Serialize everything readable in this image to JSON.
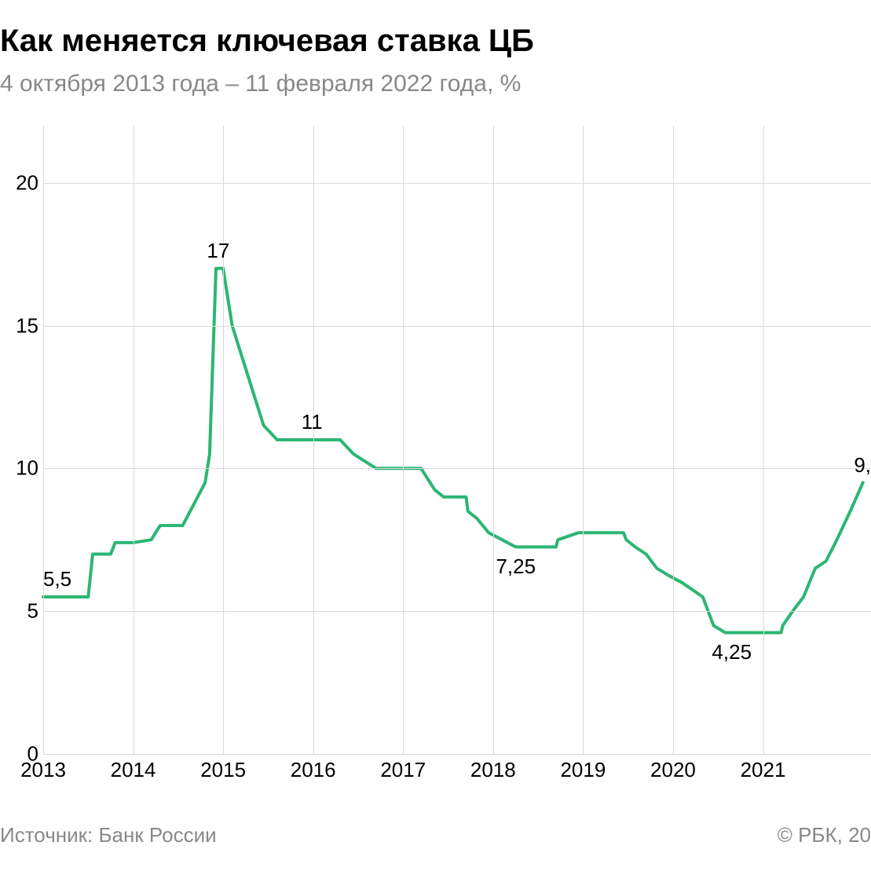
{
  "title": "Как меняется ключевая ставка ЦБ",
  "subtitle": "4 октября 2013 года – 11 февраля 2022 года, %",
  "source_label": "Источник: Банк России",
  "copyright_label": "© РБК, 20",
  "chart": {
    "type": "line",
    "line_color": "#2bb673",
    "line_width": 4,
    "background_color": "#ffffff",
    "grid_color": "#d9d9d9",
    "axis_text_color": "#000000",
    "label_text_color": "#000000",
    "tick_fontsize": 26,
    "label_fontsize": 26,
    "ylim": [
      0,
      22
    ],
    "yticks": [
      0,
      5,
      10,
      15,
      20
    ],
    "xlim": [
      2013.0,
      2022.2
    ],
    "xticks": [
      2013,
      2014,
      2015,
      2016,
      2017,
      2018,
      2019,
      2020,
      2021
    ],
    "data_labels": [
      {
        "x": 2013.0,
        "y": 5.5,
        "text": "5,5",
        "anchor": "above-left"
      },
      {
        "x": 2014.95,
        "y": 17,
        "text": "17",
        "anchor": "above"
      },
      {
        "x": 2016.0,
        "y": 11,
        "text": "11",
        "anchor": "above"
      },
      {
        "x": 2018.25,
        "y": 7.25,
        "text": "7,25",
        "anchor": "below"
      },
      {
        "x": 2020.65,
        "y": 4.25,
        "text": "4,25",
        "anchor": "below"
      },
      {
        "x": 2022.15,
        "y": 9.5,
        "text": "9,",
        "anchor": "right-edge"
      }
    ],
    "series": [
      {
        "x": 2013.0,
        "y": 5.5
      },
      {
        "x": 2013.5,
        "y": 5.5
      },
      {
        "x": 2013.55,
        "y": 7.0
      },
      {
        "x": 2013.75,
        "y": 7.0
      },
      {
        "x": 2013.8,
        "y": 7.4
      },
      {
        "x": 2013.95,
        "y": 7.4
      },
      {
        "x": 2014.0,
        "y": 7.4
      },
      {
        "x": 2014.2,
        "y": 7.5
      },
      {
        "x": 2014.3,
        "y": 8.0
      },
      {
        "x": 2014.55,
        "y": 8.0
      },
      {
        "x": 2014.6,
        "y": 8.3
      },
      {
        "x": 2014.8,
        "y": 9.5
      },
      {
        "x": 2014.85,
        "y": 10.5
      },
      {
        "x": 2014.92,
        "y": 17.0
      },
      {
        "x": 2015.0,
        "y": 17.0
      },
      {
        "x": 2015.1,
        "y": 15.0
      },
      {
        "x": 2015.2,
        "y": 14.0
      },
      {
        "x": 2015.35,
        "y": 12.5
      },
      {
        "x": 2015.45,
        "y": 11.5
      },
      {
        "x": 2015.6,
        "y": 11.0
      },
      {
        "x": 2016.3,
        "y": 11.0
      },
      {
        "x": 2016.45,
        "y": 10.5
      },
      {
        "x": 2016.7,
        "y": 10.0
      },
      {
        "x": 2017.2,
        "y": 10.0
      },
      {
        "x": 2017.25,
        "y": 9.75
      },
      {
        "x": 2017.35,
        "y": 9.25
      },
      {
        "x": 2017.45,
        "y": 9.0
      },
      {
        "x": 2017.7,
        "y": 9.0
      },
      {
        "x": 2017.72,
        "y": 8.5
      },
      {
        "x": 2017.82,
        "y": 8.25
      },
      {
        "x": 2017.95,
        "y": 7.75
      },
      {
        "x": 2018.1,
        "y": 7.5
      },
      {
        "x": 2018.25,
        "y": 7.25
      },
      {
        "x": 2018.7,
        "y": 7.25
      },
      {
        "x": 2018.72,
        "y": 7.5
      },
      {
        "x": 2018.95,
        "y": 7.75
      },
      {
        "x": 2019.45,
        "y": 7.75
      },
      {
        "x": 2019.48,
        "y": 7.5
      },
      {
        "x": 2019.58,
        "y": 7.25
      },
      {
        "x": 2019.7,
        "y": 7.0
      },
      {
        "x": 2019.82,
        "y": 6.5
      },
      {
        "x": 2019.95,
        "y": 6.25
      },
      {
        "x": 2020.1,
        "y": 6.0
      },
      {
        "x": 2020.33,
        "y": 5.5
      },
      {
        "x": 2020.45,
        "y": 4.5
      },
      {
        "x": 2020.58,
        "y": 4.25
      },
      {
        "x": 2021.2,
        "y": 4.25
      },
      {
        "x": 2021.22,
        "y": 4.5
      },
      {
        "x": 2021.33,
        "y": 5.0
      },
      {
        "x": 2021.45,
        "y": 5.5
      },
      {
        "x": 2021.58,
        "y": 6.5
      },
      {
        "x": 2021.7,
        "y": 6.75
      },
      {
        "x": 2021.82,
        "y": 7.5
      },
      {
        "x": 2021.97,
        "y": 8.5
      },
      {
        "x": 2022.11,
        "y": 9.5
      }
    ]
  }
}
